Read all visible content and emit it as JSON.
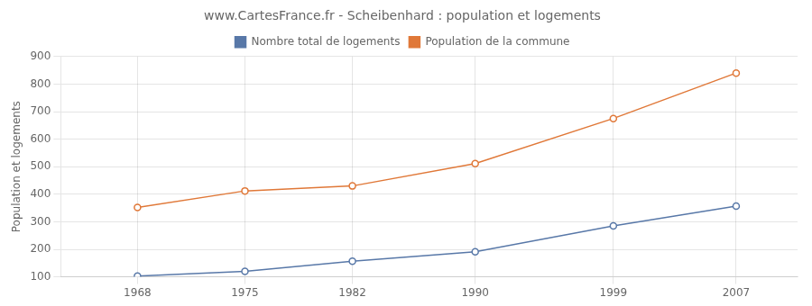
{
  "chart_data": {
    "type": "line",
    "title": "www.CartesFrance.fr - Scheibenhard : population et logements",
    "ylabel": "Population et logements",
    "x": [
      1968,
      1975,
      1982,
      1990,
      1999,
      2007
    ],
    "series": [
      {
        "name": "Nombre total de logements",
        "color": "#5878a8",
        "values": [
          103,
          120,
          157,
          191,
          285,
          357
        ]
      },
      {
        "name": "Population de la commune",
        "color": "#e07838",
        "values": [
          352,
          412,
          430,
          511,
          675,
          840
        ]
      }
    ],
    "xlim": [
      1963,
      2011
    ],
    "xticks": [
      1968,
      1975,
      1982,
      1990,
      1999,
      2007
    ],
    "ylim": [
      100,
      900
    ],
    "yticks": [
      100,
      200,
      300,
      400,
      500,
      600,
      700,
      800,
      900
    ],
    "grid": true,
    "legend": "top",
    "marker": "circle"
  }
}
